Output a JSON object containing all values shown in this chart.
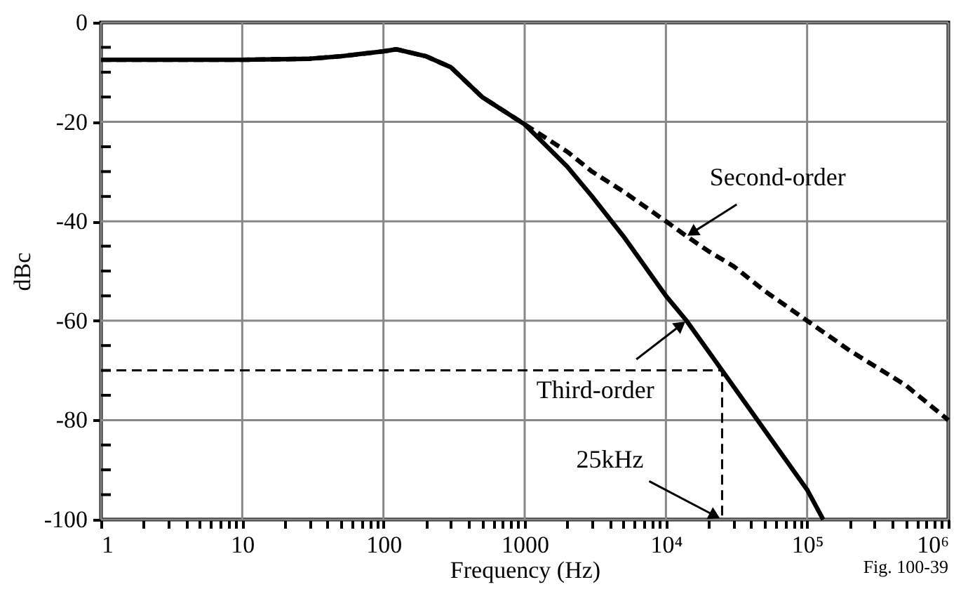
{
  "chart_data": {
    "type": "line",
    "xlabel": "Frequency (Hz)",
    "ylabel": "dBc",
    "log": "x",
    "grid": true,
    "xlim": [
      1,
      1000000
    ],
    "ylim": [
      -100,
      0
    ],
    "xticks": [
      1,
      {
        "value": 2,
        "label": null
      },
      {
        "value": 3,
        "label": null
      },
      {
        "value": 4,
        "label": null
      },
      {
        "value": 5,
        "label": null
      },
      {
        "value": 6,
        "label": null
      },
      {
        "value": 7,
        "label": null
      },
      {
        "value": 8,
        "label": null
      },
      {
        "value": 9,
        "label": null
      },
      10,
      {
        "value": 20,
        "label": null
      },
      {
        "value": 30,
        "label": null
      },
      {
        "value": 40,
        "label": null
      },
      {
        "value": 50,
        "label": null
      },
      {
        "value": 60,
        "label": null
      },
      {
        "value": 70,
        "label": null
      },
      {
        "value": 80,
        "label": null
      },
      {
        "value": 90,
        "label": null
      },
      100,
      {
        "value": 200,
        "label": null
      },
      {
        "value": 300,
        "label": null
      },
      {
        "value": 400,
        "label": null
      },
      {
        "value": 500,
        "label": null
      },
      {
        "value": 600,
        "label": null
      },
      {
        "value": 700,
        "label": null
      },
      {
        "value": 800,
        "label": null
      },
      {
        "value": 900,
        "label": null
      },
      1000,
      {
        "value": 2000,
        "label": null
      },
      {
        "value": 3000,
        "label": null
      },
      {
        "value": 4000,
        "label": null
      },
      {
        "value": 5000,
        "label": null
      },
      {
        "value": 6000,
        "label": null
      },
      {
        "value": 7000,
        "label": null
      },
      {
        "value": 8000,
        "label": null
      },
      {
        "value": 9000,
        "label": null
      },
      {
        "value": 10000,
        "label": "10⁴"
      },
      {
        "value": 20000,
        "label": null
      },
      {
        "value": 30000,
        "label": null
      },
      {
        "value": 40000,
        "label": null
      },
      {
        "value": 50000,
        "label": null
      },
      {
        "value": 60000,
        "label": null
      },
      {
        "value": 70000,
        "label": null
      },
      {
        "value": 80000,
        "label": null
      },
      {
        "value": 90000,
        "label": null
      },
      {
        "value": 100000,
        "label": "10⁵"
      },
      {
        "value": 200000,
        "label": null
      },
      {
        "value": 300000,
        "label": null
      },
      {
        "value": 400000,
        "label": null
      },
      {
        "value": 500000,
        "label": null
      },
      {
        "value": 600000,
        "label": null
      },
      {
        "value": 700000,
        "label": null
      },
      {
        "value": 800000,
        "label": null
      },
      {
        "value": 900000,
        "label": null
      },
      {
        "value": 1000000,
        "label": "10⁶"
      }
    ],
    "yticks": [
      -100,
      {
        "value": -95,
        "label": null
      },
      {
        "value": -90,
        "label": null
      },
      {
        "value": -85,
        "label": null
      },
      -80,
      {
        "value": -75,
        "label": null
      },
      {
        "value": -70,
        "label": null
      },
      {
        "value": -65,
        "label": null
      },
      -60,
      {
        "value": -55,
        "label": null
      },
      {
        "value": -50,
        "label": null
      },
      {
        "value": -45,
        "label": null
      },
      -40,
      {
        "value": -35,
        "label": null
      },
      {
        "value": -30,
        "label": null
      },
      {
        "value": -25,
        "label": null
      },
      -20,
      {
        "value": -15,
        "label": null
      },
      {
        "value": -10,
        "label": null
      },
      {
        "value": -5,
        "label": null
      },
      0
    ],
    "series": [
      {
        "name": "Second-order",
        "color": "#000000",
        "line_style": "dashed",
        "x": [
          1,
          10,
          30,
          50,
          100,
          123,
          200,
          300,
          500,
          1000,
          2000,
          3000,
          5000,
          10000,
          14000,
          20000,
          30000,
          50000,
          100000,
          200000,
          500000,
          1000000
        ],
        "values": [
          -7.5,
          -7.5,
          -7.3,
          -6.8,
          -5.8,
          -5.4,
          -6.8,
          -9,
          -15,
          -20.5,
          -26,
          -30,
          -34,
          -40,
          -43,
          -46,
          -49,
          -54,
          -60,
          -66,
          -73,
          -80
        ]
      },
      {
        "name": "Third-order",
        "color": "#000000",
        "line_style": "solid",
        "x": [
          1,
          10,
          30,
          50,
          100,
          123,
          200,
          300,
          500,
          1000,
          2000,
          3000,
          5000,
          10000,
          14000,
          25000,
          50000,
          100000,
          130000
        ],
        "values": [
          -7.5,
          -7.5,
          -7.3,
          -6.8,
          -5.8,
          -5.4,
          -6.8,
          -9,
          -15,
          -20.5,
          -29,
          -35,
          -43,
          -55,
          -60,
          -70,
          -82,
          -94,
          -100
        ]
      },
      {
        "type": "line",
        "color": "#000000",
        "line_style": "dashed",
        "x": [
          1,
          25000,
          25000
        ],
        "values": [
          -70,
          -70,
          -100
        ]
      }
    ],
    "annotations": [
      {
        "text": "25kHz",
        "x": 25000,
        "y": -100
      },
      "Fig. 100-39"
    ]
  }
}
